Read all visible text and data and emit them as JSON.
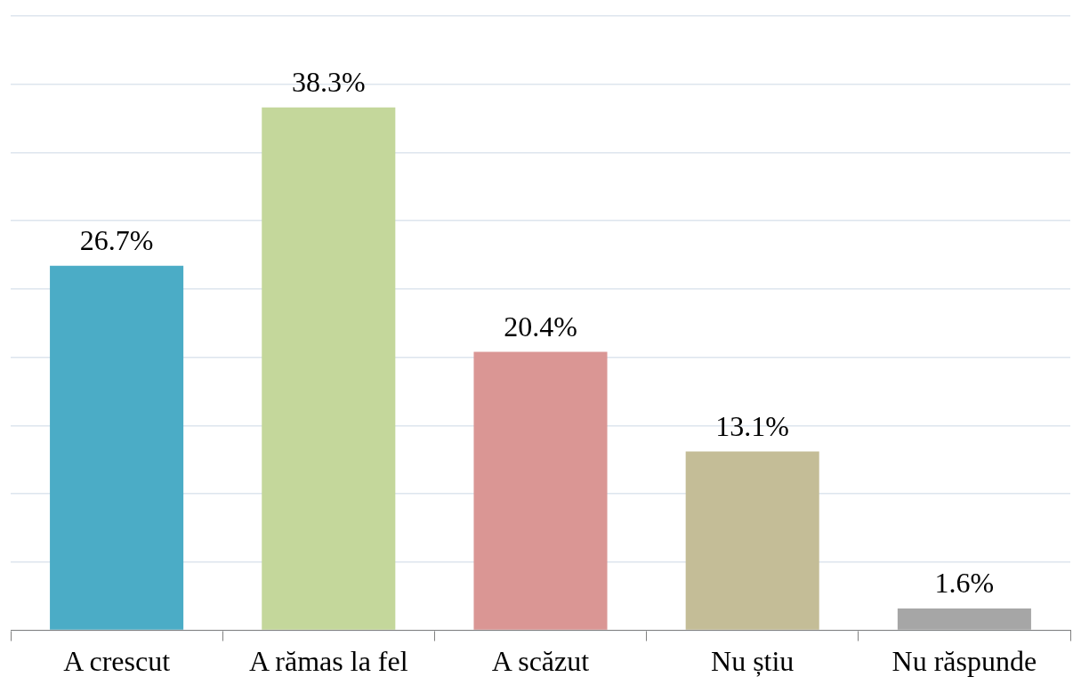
{
  "chart_data": {
    "type": "bar",
    "categories": [
      "A crescut",
      "A rămas la fel",
      "A scăzut",
      "Nu știu",
      "Nu răspunde"
    ],
    "values": [
      26.7,
      38.3,
      20.4,
      13.1,
      1.6
    ],
    "colors": [
      "#4bacc6",
      "#c4d79b",
      "#da9694",
      "#c4bd97",
      "#a6a6a6"
    ],
    "value_labels": [
      "26.7%",
      "38.3%",
      "20.4%",
      "13.1%",
      "1.6%"
    ],
    "ylim": [
      0,
      45
    ],
    "yticks": [
      {
        "value": 0,
        "label": null
      },
      {
        "value": 5,
        "label": null
      },
      {
        "value": 10,
        "label": null
      },
      {
        "value": 15,
        "label": null
      },
      {
        "value": 20,
        "label": null
      },
      {
        "value": 25,
        "label": null
      },
      {
        "value": 30,
        "label": null
      },
      {
        "value": 35,
        "label": null
      },
      {
        "value": 40,
        "label": null
      },
      {
        "value": 45,
        "label": null
      }
    ],
    "grid": "y",
    "tick_labels": "x"
  }
}
